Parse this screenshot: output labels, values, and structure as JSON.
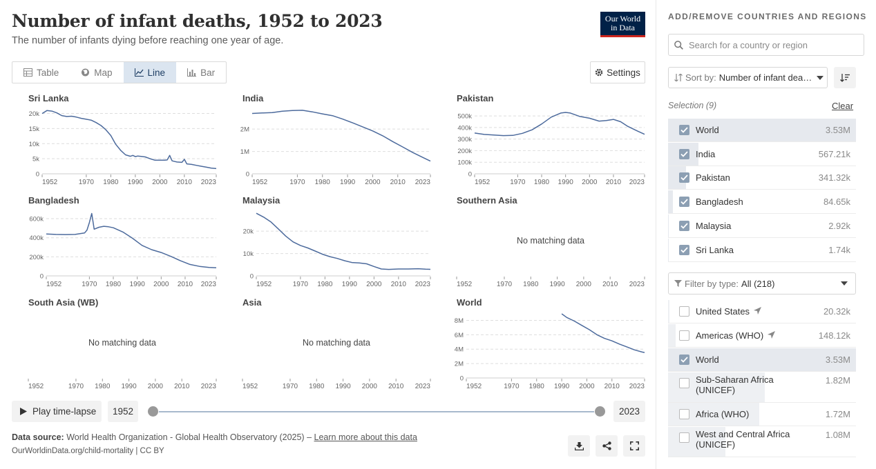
{
  "header": {
    "title": "Number of infant deaths, 1952 to 2023",
    "subtitle": "The number of infants dying before reaching one year of age.",
    "logo_line1": "Our World",
    "logo_line2": "in Data"
  },
  "tabs": [
    {
      "label": "Table",
      "icon": "table-icon",
      "active": false
    },
    {
      "label": "Map",
      "icon": "globe-icon",
      "active": false
    },
    {
      "label": "Line",
      "icon": "line-chart-icon",
      "active": true
    },
    {
      "label": "Bar",
      "icon": "bar-chart-icon",
      "active": false
    }
  ],
  "settings_label": "Settings",
  "timeline": {
    "play_label": "Play time-lapse",
    "start_year": "1952",
    "end_year": "2023",
    "start_fraction": 0,
    "end_fraction": 1
  },
  "footer": {
    "source_label": "Data source:",
    "source_text": "World Health Organization - Global Health Observatory (2025) –",
    "learn_more": "Learn more about this data",
    "url_text": "OurWorldinData.org/child-mortality | CC BY"
  },
  "colors": {
    "line": "#4c6a9c",
    "accent": "#002147",
    "logo_underline": "#ce261e"
  },
  "chart_data": [
    {
      "type": "line",
      "title": "Sri Lanka",
      "x_ticks": [
        1952,
        1970,
        1980,
        1990,
        2000,
        2010,
        2023
      ],
      "y_ticks": [
        0,
        5000,
        10000,
        15000,
        20000
      ],
      "y_tick_labels": [
        "0",
        "5k",
        "10k",
        "15k",
        "20k"
      ],
      "ylim": [
        0,
        21500
      ],
      "xlim": [
        1952,
        2023
      ],
      "x": [
        1952,
        1954,
        1956,
        1958,
        1960,
        1962,
        1964,
        1966,
        1968,
        1970,
        1972,
        1974,
        1976,
        1978,
        1980,
        1982,
        1984,
        1986,
        1988,
        1989,
        1990,
        1991,
        1992,
        1994,
        1996,
        1998,
        2000,
        2002,
        2003,
        2004,
        2005,
        2007,
        2009,
        2010,
        2011,
        2013,
        2015,
        2017,
        2019,
        2021,
        2023
      ],
      "y": [
        20000,
        21000,
        20800,
        20200,
        19300,
        19000,
        19100,
        18800,
        18400,
        18100,
        17800,
        17000,
        16000,
        14600,
        12700,
        9800,
        7800,
        6300,
        5800,
        6100,
        5700,
        5900,
        5800,
        5600,
        5000,
        4500,
        4500,
        4500,
        4600,
        6100,
        4300,
        3900,
        3800,
        4800,
        3300,
        3100,
        2800,
        2500,
        2200,
        1900,
        1740
      ]
    },
    {
      "type": "line",
      "title": "India",
      "x_ticks": [
        1952,
        1970,
        1980,
        1990,
        2000,
        2010,
        2023
      ],
      "y_ticks": [
        0,
        1000000,
        2000000
      ],
      "y_tick_labels": [
        "0",
        "1M",
        "2M"
      ],
      "ylim": [
        0,
        2900000
      ],
      "xlim": [
        1952,
        2023
      ],
      "x": [
        1952,
        1956,
        1960,
        1964,
        1968,
        1972,
        1976,
        1980,
        1984,
        1988,
        1992,
        1996,
        2000,
        2004,
        2008,
        2012,
        2016,
        2020,
        2023
      ],
      "y": [
        2700000,
        2720000,
        2740000,
        2800000,
        2830000,
        2840000,
        2770000,
        2680000,
        2600000,
        2450000,
        2280000,
        2100000,
        1920000,
        1700000,
        1440000,
        1200000,
        950000,
        730000,
        567210
      ]
    },
    {
      "type": "line",
      "title": "Pakistan",
      "x_ticks": [
        1952,
        1970,
        1980,
        1990,
        2000,
        2010,
        2023
      ],
      "y_ticks": [
        0,
        100000,
        200000,
        300000,
        400000,
        500000
      ],
      "y_tick_labels": [
        "0",
        "100k",
        "200k",
        "300k",
        "400k",
        "500k"
      ],
      "ylim": [
        0,
        560000
      ],
      "xlim": [
        1952,
        2023
      ],
      "x": [
        1952,
        1956,
        1960,
        1964,
        1968,
        1972,
        1976,
        1980,
        1984,
        1988,
        1990,
        1992,
        1996,
        2000,
        2004,
        2007,
        2010,
        2013,
        2016,
        2020,
        2023
      ],
      "y": [
        352000,
        340000,
        335000,
        330000,
        332000,
        350000,
        380000,
        430000,
        490000,
        525000,
        530000,
        525000,
        495000,
        480000,
        455000,
        460000,
        470000,
        450000,
        410000,
        370000,
        341320
      ]
    },
    {
      "type": "line",
      "title": "Bangladesh",
      "x_ticks": [
        1952,
        1970,
        1980,
        1990,
        2000,
        2010,
        2023
      ],
      "y_ticks": [
        0,
        200000,
        400000,
        600000
      ],
      "y_tick_labels": [
        "0",
        "200k",
        "400k",
        "600k"
      ],
      "ylim": [
        0,
        680000
      ],
      "xlim": [
        1952,
        2023
      ],
      "x": [
        1952,
        1956,
        1960,
        1964,
        1968,
        1969,
        1970,
        1971,
        1972,
        1974,
        1976,
        1978,
        1980,
        1984,
        1988,
        1992,
        1996,
        2000,
        2004,
        2008,
        2012,
        2016,
        2020,
        2023
      ],
      "y": [
        440000,
        435000,
        433000,
        435000,
        450000,
        480000,
        560000,
        655000,
        490000,
        510000,
        520000,
        515000,
        505000,
        460000,
        395000,
        320000,
        275000,
        245000,
        205000,
        160000,
        120000,
        100000,
        88000,
        84650
      ]
    },
    {
      "type": "line",
      "title": "Malaysia",
      "x_ticks": [
        1952,
        1970,
        1980,
        1990,
        2000,
        2010,
        2023
      ],
      "y_ticks": [
        0,
        10000,
        20000
      ],
      "y_tick_labels": [
        "0",
        "10k",
        "20k"
      ],
      "ylim": [
        0,
        29000
      ],
      "xlim": [
        1952,
        2023
      ],
      "x": [
        1952,
        1955,
        1958,
        1961,
        1964,
        1967,
        1970,
        1973,
        1976,
        1979,
        1982,
        1985,
        1988,
        1991,
        1994,
        1997,
        2000,
        2003,
        2006,
        2010,
        2014,
        2018,
        2021,
        2023
      ],
      "y": [
        28000,
        26300,
        24100,
        21000,
        17800,
        15200,
        13600,
        12500,
        11100,
        9700,
        8600,
        7800,
        6800,
        6000,
        5800,
        5400,
        4200,
        3100,
        2900,
        3100,
        3100,
        3200,
        3000,
        2920
      ]
    },
    {
      "type": "line",
      "title": "Southern Asia",
      "x_ticks": [
        1952,
        1970,
        1980,
        1990,
        2000,
        2010,
        2023
      ],
      "no_data": "No matching data",
      "xlim": [
        1952,
        2023
      ],
      "x": [],
      "y": []
    },
    {
      "type": "line",
      "title": "South Asia (WB)",
      "x_ticks": [
        1952,
        1970,
        1980,
        1990,
        2000,
        2010,
        2023
      ],
      "no_data": "No matching data",
      "xlim": [
        1952,
        2023
      ],
      "x": [],
      "y": []
    },
    {
      "type": "line",
      "title": "Asia",
      "x_ticks": [
        1952,
        1970,
        1980,
        1990,
        2000,
        2010,
        2023
      ],
      "no_data": "No matching data",
      "xlim": [
        1952,
        2023
      ],
      "x": [],
      "y": []
    },
    {
      "type": "line",
      "title": "World",
      "x_ticks": [
        1952,
        1970,
        1980,
        1990,
        2000,
        2010,
        2023
      ],
      "y_ticks": [
        0,
        2000000,
        4000000,
        6000000,
        8000000
      ],
      "y_tick_labels": [
        "0",
        "2M",
        "4M",
        "6M",
        "8M"
      ],
      "ylim": [
        0,
        9000000
      ],
      "xlim": [
        1952,
        2023
      ],
      "x": [
        1990,
        1992,
        1995,
        1998,
        2001,
        2004,
        2007,
        2010,
        2013,
        2016,
        2019,
        2022,
        2023
      ],
      "y": [
        8900000,
        8400000,
        7900000,
        7300000,
        6700000,
        6000000,
        5500000,
        5150000,
        4700000,
        4300000,
        3900000,
        3600000,
        3530000
      ]
    }
  ],
  "sidebar": {
    "title": "ADD/REMOVE COUNTRIES AND REGIONS",
    "search_placeholder": "Search for a country or region",
    "sort_label": "Sort by:",
    "sort_value": "Number of infant deaths",
    "selection_label": "Selection (9)",
    "clear_label": "Clear",
    "selected": [
      {
        "name": "World",
        "value": "3.53M",
        "fraction": 1.0,
        "checked": true
      },
      {
        "name": "India",
        "value": "567.21k",
        "fraction": 0.16,
        "checked": true
      },
      {
        "name": "Pakistan",
        "value": "341.32k",
        "fraction": 0.097,
        "checked": true
      },
      {
        "name": "Bangladesh",
        "value": "84.65k",
        "fraction": 0.024,
        "checked": true
      },
      {
        "name": "Malaysia",
        "value": "2.92k",
        "fraction": 0.001,
        "checked": true
      },
      {
        "name": "Sri Lanka",
        "value": "1.74k",
        "fraction": 0.0005,
        "checked": true
      }
    ],
    "filter_label": "Filter by type:",
    "filter_value": "All (218)",
    "all_items": [
      {
        "name": "United States",
        "value": "20.32k",
        "fraction": 0.006,
        "checked": false,
        "locator": true
      },
      {
        "name": "Americas (WHO)",
        "value": "148.12k",
        "fraction": 0.042,
        "checked": false,
        "locator": true
      },
      {
        "name": "World",
        "value": "3.53M",
        "fraction": 1.0,
        "checked": true,
        "locator": false
      },
      {
        "name": "Sub-Saharan Africa\n(UNICEF)",
        "value": "1.82M",
        "fraction": 0.516,
        "checked": false,
        "locator": false
      },
      {
        "name": "Africa (WHO)",
        "value": "1.72M",
        "fraction": 0.487,
        "checked": false,
        "locator": false
      },
      {
        "name": "West and Central Africa\n(UNICEF)",
        "value": "1.08M",
        "fraction": 0.306,
        "checked": false,
        "locator": false
      }
    ]
  }
}
